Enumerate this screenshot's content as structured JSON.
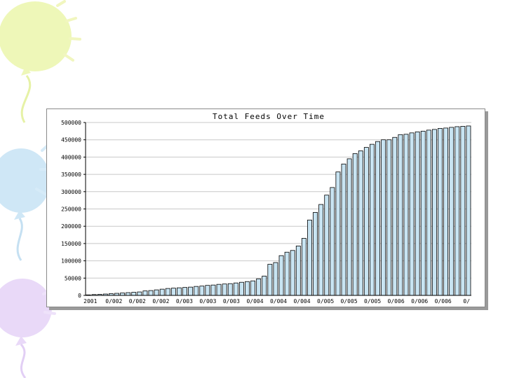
{
  "slide": {
    "background": "#ffffff",
    "balloon_colors": [
      "#eef7b8",
      "#cfe7f6",
      "#e9d9f8"
    ]
  },
  "chart_data": {
    "type": "bar",
    "title": "Total Feeds Over Time",
    "xlabel": "",
    "ylabel": "",
    "ylim": [
      0,
      500000
    ],
    "y_ticks": [
      0,
      50000,
      100000,
      150000,
      200000,
      250000,
      300000,
      350000,
      400000,
      450000,
      500000
    ],
    "y_tick_labels": [
      "0",
      "50000",
      "100000",
      "150000",
      "200000",
      "250000",
      "300000",
      "350000",
      "400000",
      "450000",
      "500000"
    ],
    "x_tick_labels": [
      "2001",
      "0/002",
      "0/002",
      "0/002",
      "0/003",
      "0/003",
      "0/003",
      "0/004",
      "0/004",
      "0/004",
      "0/005",
      "0/005",
      "0/005",
      "0/006",
      "0/006",
      "0/006",
      "0/"
    ],
    "grid": true,
    "bar_color": "#c8e4f2",
    "bar_edge_color": "#000000",
    "values": [
      1500,
      2500,
      3000,
      4000,
      5000,
      6000,
      7000,
      8000,
      9000,
      10000,
      13000,
      14000,
      16000,
      18000,
      20000,
      21000,
      22000,
      23000,
      24000,
      26000,
      27000,
      29000,
      30000,
      32000,
      33000,
      34000,
      36000,
      38000,
      40000,
      42000,
      48000,
      56000,
      90000,
      95000,
      115000,
      125000,
      130000,
      143000,
      165000,
      218000,
      240000,
      263000,
      290000,
      312000,
      357000,
      380000,
      395000,
      410000,
      418000,
      428000,
      437000,
      445000,
      450000,
      450000,
      457000,
      465000,
      466000,
      470000,
      473000,
      475000,
      478000,
      480000,
      483000,
      484000,
      486000,
      488000,
      489000,
      490000
    ]
  }
}
